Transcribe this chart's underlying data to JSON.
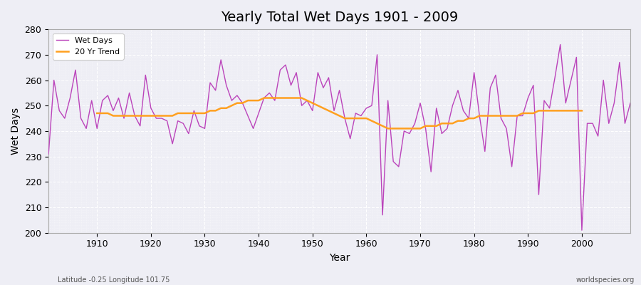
{
  "title": "Yearly Total Wet Days 1901 - 2009",
  "xlabel": "Year",
  "ylabel": "Wet Days",
  "subtitle_left": "Latitude -0.25 Longitude 101.75",
  "subtitle_right": "worldspecies.org",
  "legend_wet": "Wet Days",
  "legend_trend": "20 Yr Trend",
  "wet_color": "#BB44BB",
  "trend_color": "#FFA020",
  "background_color": "#EEEEF5",
  "plot_bg_color": "#EEEEF5",
  "grid_color": "#FFFFFF",
  "spine_color": "#AAAAAA",
  "ylim": [
    200,
    280
  ],
  "xlim": [
    1901,
    2009
  ],
  "yticks": [
    200,
    210,
    220,
    230,
    240,
    250,
    260,
    270,
    280
  ],
  "xticks": [
    1910,
    1920,
    1930,
    1940,
    1950,
    1960,
    1970,
    1980,
    1990,
    2000
  ],
  "years": [
    1901,
    1902,
    1903,
    1904,
    1905,
    1906,
    1907,
    1908,
    1909,
    1910,
    1911,
    1912,
    1913,
    1914,
    1915,
    1916,
    1917,
    1918,
    1919,
    1920,
    1921,
    1922,
    1923,
    1924,
    1925,
    1926,
    1927,
    1928,
    1929,
    1930,
    1931,
    1932,
    1933,
    1934,
    1935,
    1936,
    1937,
    1938,
    1939,
    1940,
    1941,
    1942,
    1943,
    1944,
    1945,
    1946,
    1947,
    1948,
    1949,
    1950,
    1951,
    1952,
    1953,
    1954,
    1955,
    1956,
    1957,
    1958,
    1959,
    1960,
    1961,
    1962,
    1963,
    1964,
    1965,
    1966,
    1967,
    1968,
    1969,
    1970,
    1971,
    1972,
    1973,
    1974,
    1975,
    1976,
    1977,
    1978,
    1979,
    1980,
    1981,
    1982,
    1983,
    1984,
    1985,
    1986,
    1987,
    1988,
    1989,
    1990,
    1991,
    1992,
    1993,
    1994,
    1995,
    1996,
    1997,
    1998,
    1999,
    2000,
    2001,
    2002,
    2003,
    2004,
    2005,
    2006,
    2007,
    2008,
    2009
  ],
  "wet_days": [
    231,
    260,
    248,
    245,
    253,
    264,
    245,
    241,
    252,
    241,
    252,
    254,
    248,
    253,
    245,
    255,
    246,
    242,
    262,
    249,
    245,
    245,
    244,
    235,
    244,
    243,
    239,
    248,
    242,
    241,
    259,
    256,
    268,
    258,
    252,
    254,
    251,
    246,
    241,
    247,
    253,
    255,
    252,
    264,
    266,
    258,
    263,
    250,
    252,
    248,
    263,
    257,
    261,
    248,
    256,
    245,
    237,
    247,
    246,
    249,
    250,
    270,
    207,
    252,
    228,
    226,
    240,
    239,
    243,
    251,
    241,
    224,
    249,
    239,
    241,
    250,
    256,
    248,
    245,
    263,
    246,
    232,
    257,
    262,
    245,
    241,
    226,
    246,
    246,
    253,
    258,
    215,
    252,
    249,
    261,
    274,
    251,
    260,
    269,
    201,
    243,
    243,
    238,
    260,
    243,
    251,
    267,
    243,
    251
  ],
  "trend_years": [
    1910,
    1911,
    1912,
    1913,
    1914,
    1915,
    1916,
    1917,
    1918,
    1919,
    1920,
    1921,
    1922,
    1923,
    1924,
    1925,
    1926,
    1927,
    1928,
    1929,
    1930,
    1931,
    1932,
    1933,
    1934,
    1935,
    1936,
    1937,
    1938,
    1939,
    1940,
    1941,
    1942,
    1943,
    1944,
    1945,
    1946,
    1947,
    1948,
    1949,
    1950,
    1951,
    1952,
    1953,
    1954,
    1955,
    1956,
    1957,
    1958,
    1959,
    1960,
    1961,
    1962,
    1963,
    1964,
    1965,
    1966,
    1967,
    1968,
    1969,
    1970,
    1971,
    1972,
    1973,
    1974,
    1975,
    1976,
    1977,
    1978,
    1979,
    1980,
    1981,
    1982,
    1983,
    1984,
    1985,
    1986,
    1987,
    1988,
    1989,
    1990,
    1991,
    1992,
    1993,
    1994,
    1995,
    1996,
    1997,
    1998,
    1999,
    2000
  ],
  "trend_vals": [
    247,
    247,
    247,
    246,
    246,
    246,
    246,
    246,
    246,
    246,
    246,
    246,
    246,
    246,
    246,
    247,
    247,
    247,
    247,
    247,
    247,
    248,
    248,
    249,
    249,
    250,
    251,
    251,
    252,
    252,
    252,
    253,
    253,
    253,
    253,
    253,
    253,
    253,
    253,
    252,
    251,
    250,
    249,
    248,
    247,
    246,
    245,
    245,
    245,
    245,
    245,
    244,
    243,
    242,
    241,
    241,
    241,
    241,
    241,
    241,
    241,
    242,
    242,
    242,
    243,
    243,
    243,
    244,
    244,
    245,
    245,
    246,
    246,
    246,
    246,
    246,
    246,
    246,
    246,
    247,
    247,
    247,
    248,
    248,
    248,
    248,
    248,
    248,
    248,
    248,
    248
  ],
  "title_fontsize": 14,
  "label_fontsize": 10,
  "tick_fontsize": 9,
  "legend_fontsize": 8,
  "subtitle_fontsize": 7
}
